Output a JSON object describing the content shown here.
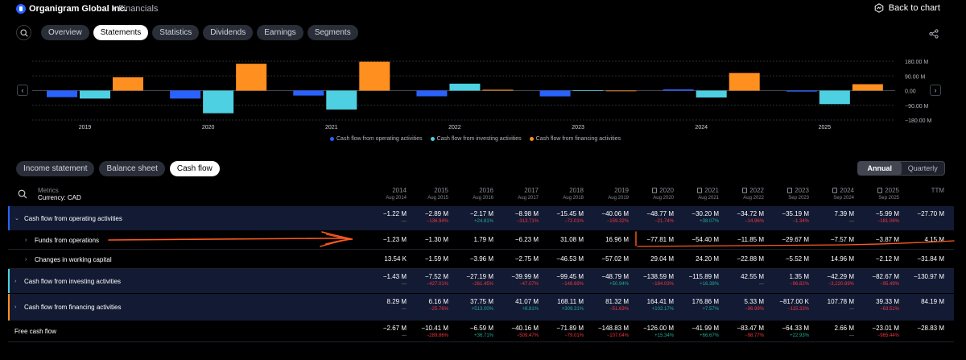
{
  "header": {
    "company": "Organigram Global Inc.",
    "section": "• Financials",
    "back_label": "Back to chart"
  },
  "tabs": [
    "Overview",
    "Statements",
    "Statistics",
    "Dividends",
    "Earnings",
    "Segments"
  ],
  "active_tab": "Statements",
  "chart_data": {
    "type": "bar",
    "categories": [
      "2019",
      "2020",
      "2021",
      "2022",
      "2023",
      "2024",
      "2025"
    ],
    "series": [
      {
        "name": "Cash flow from operating activities",
        "color": "#2962ff",
        "values": [
          -40.06,
          -48.77,
          -30.2,
          -34.72,
          -35.19,
          7.39,
          -5.99
        ]
      },
      {
        "name": "Cash flow from investing activities",
        "color": "#4dd0e1",
        "values": [
          -48.79,
          -138.59,
          -115.89,
          42.55,
          1.35,
          -42.29,
          -82.67
        ]
      },
      {
        "name": "Cash flow from financing activities",
        "color": "#ff8f1f",
        "values": [
          81.32,
          164.41,
          176.86,
          5.33,
          -0.817,
          107.78,
          39.33
        ]
      }
    ],
    "y_ticks": [
      "180.00 M",
      "90.00 M",
      "0.00",
      "−90.00 M",
      "−180.00 M"
    ],
    "ylim": [
      -180,
      180
    ],
    "legend_position": "bottom"
  },
  "statement_tabs": [
    "Income statement",
    "Balance sheet",
    "Cash flow"
  ],
  "active_statement": "Cash flow",
  "period_toggle": [
    "Annual",
    "Quarterly"
  ],
  "active_period": "Annual",
  "table": {
    "metrics_label": "Metrics",
    "currency_label": "Currency: CAD",
    "columns": [
      {
        "year": "2014",
        "date": "Aug 2014",
        "doc": false
      },
      {
        "year": "2015",
        "date": "Aug 2015",
        "doc": false
      },
      {
        "year": "2016",
        "date": "Aug 2016",
        "doc": false
      },
      {
        "year": "2017",
        "date": "Aug 2017",
        "doc": false
      },
      {
        "year": "2018",
        "date": "Aug 2018",
        "doc": false
      },
      {
        "year": "2019",
        "date": "Aug 2019",
        "doc": false
      },
      {
        "year": "2020",
        "date": "Aug 2020",
        "doc": true
      },
      {
        "year": "2021",
        "date": "Aug 2021",
        "doc": true
      },
      {
        "year": "2022",
        "date": "Aug 2022",
        "doc": true
      },
      {
        "year": "2023",
        "date": "Sep 2023",
        "doc": true
      },
      {
        "year": "2024",
        "date": "Sep 2024",
        "doc": true
      },
      {
        "year": "2025",
        "date": "Sep 2025",
        "doc": true
      },
      {
        "year": "TTM",
        "date": "",
        "doc": false
      }
    ],
    "rows": [
      {
        "label": "Cash flow from operating activities",
        "chevron": "⌄",
        "indent": 0,
        "highlight": true,
        "bar": "#2962ff",
        "values": [
          "−1.22 M",
          "−2.89 M",
          "−2.17 M",
          "−8.98 M",
          "−15.45 M",
          "−40.06 M",
          "−48.77 M",
          "−30.20 M",
          "−34.72 M",
          "−35.19 M",
          "7.39 M",
          "−5.99 M",
          "−27.70 M"
        ],
        "changes": [
          "—",
          "−136.94%",
          "+24.81%",
          "−313.71%",
          "−72.01%",
          "−159.32%",
          "−21.74%",
          "+38.07%",
          "−14.96%",
          "−1.34%",
          "—",
          "−181.06%",
          ""
        ]
      },
      {
        "label": "Funds from operations",
        "chevron": "›",
        "indent": 1,
        "highlight": false,
        "bar": "",
        "values": [
          "−1.23 M",
          "−1.30 M",
          "1.79 M",
          "−6.23 M",
          "31.08 M",
          "16.96 M",
          "−77.81 M",
          "−54.40 M",
          "−11.85 M",
          "−29.67 M",
          "−7.57 M",
          "−3.87 M",
          "4.15 M"
        ],
        "changes": []
      },
      {
        "label": "Changes in working capital",
        "chevron": "›",
        "indent": 1,
        "highlight": false,
        "bar": "",
        "values": [
          "13.54 K",
          "−1.59 M",
          "−3.96 M",
          "−2.75 M",
          "−46.53 M",
          "−57.02 M",
          "29.04 M",
          "24.20 M",
          "−22.88 M",
          "−5.52 M",
          "14.96 M",
          "−2.12 M",
          "−31.84 M"
        ],
        "changes": []
      },
      {
        "label": "Cash flow from investing activities",
        "chevron": "›",
        "indent": 0,
        "highlight": true,
        "bar": "#4dd0e1",
        "values": [
          "−1.43 M",
          "−7.52 M",
          "−27.19 M",
          "−39.99 M",
          "−99.45 M",
          "−48.79 M",
          "−138.59 M",
          "−115.89 M",
          "42.55 M",
          "1.35 M",
          "−42.29 M",
          "−82.67 M",
          "−130.97 M"
        ],
        "changes": [
          "—",
          "−427.01%",
          "−261.45%",
          "−47.07%",
          "−148.69%",
          "+50.94%",
          "−184.03%",
          "+16.38%",
          "—",
          "−96.82%",
          "−3,220.89%",
          "−95.49%",
          ""
        ]
      },
      {
        "label": "Cash flow from financing activities",
        "chevron": "›",
        "indent": 0,
        "highlight": true,
        "bar": "#ff8f1f",
        "values": [
          "8.29 M",
          "6.16 M",
          "37.75 M",
          "41.07 M",
          "168.11 M",
          "81.32 M",
          "164.41 M",
          "176.86 M",
          "5.33 M",
          "−817.00 K",
          "107.78 M",
          "39.33 M",
          "84.19 M"
        ],
        "changes": [
          "—",
          "−25.76%",
          "+513.00%",
          "+8.81%",
          "+309.31%",
          "−51.63%",
          "+102.17%",
          "+7.57%",
          "−96.99%",
          "−115.33%",
          "—",
          "−63.51%",
          ""
        ]
      },
      {
        "label": "Free cash flow",
        "chevron": "",
        "indent": 0,
        "highlight": false,
        "bar": "",
        "values": [
          "−2.67 M",
          "−10.41 M",
          "−6.59 M",
          "−40.16 M",
          "−71.89 M",
          "−148.83 M",
          "−126.00 M",
          "−41.99 M",
          "−83.47 M",
          "−64.33 M",
          "2.66 M",
          "−23.01 M",
          "−28.83 M"
        ],
        "changes": [
          "—",
          "−289.86%",
          "+36.71%",
          "−509.47%",
          "−79.01%",
          "−107.04%",
          "+15.34%",
          "+66.67%",
          "−98.77%",
          "+22.93%",
          "—",
          "−965.44%",
          ""
        ]
      }
    ]
  }
}
